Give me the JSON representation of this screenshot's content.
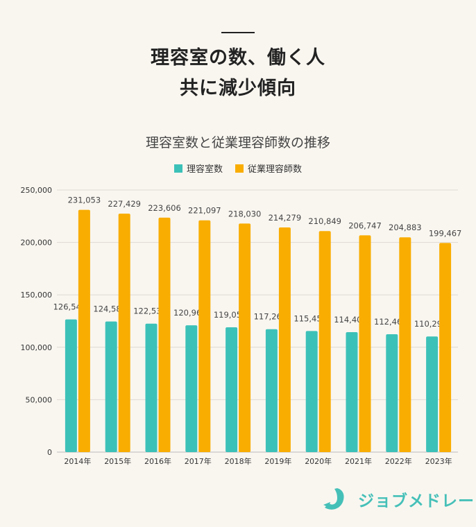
{
  "headline": {
    "line1": "理容室の数、働く人",
    "line2": "共に減少傾向"
  },
  "brand": {
    "name": "ジョブメドレー"
  },
  "colors": {
    "background": "#f9f6f0",
    "series1": "#3cc1b8",
    "series2": "#f9ad00",
    "grid": "#dedad3"
  },
  "chart_data": {
    "type": "bar",
    "title": "理容室数と従業理容師数の推移",
    "categories": [
      "2014年",
      "2015年",
      "2016年",
      "2017年",
      "2018年",
      "2019年",
      "2020年",
      "2021年",
      "2022年",
      "2023年"
    ],
    "series": [
      {
        "name": "理容室数",
        "values": [
          126546,
          124584,
          122539,
          120965,
          119053,
          117266,
          115456,
          114403,
          112468,
          110297
        ]
      },
      {
        "name": "従業理容師数",
        "values": [
          231053,
          227429,
          223606,
          221097,
          218030,
          214279,
          210849,
          206747,
          204883,
          199467
        ]
      }
    ],
    "yticks": [
      0,
      50000,
      100000,
      150000,
      200000,
      250000
    ],
    "ytick_labels": [
      "0",
      "50,000",
      "100,000",
      "150,000",
      "200,000",
      "250,000"
    ],
    "ylim": [
      0,
      250000
    ],
    "grid": true,
    "legend": "top-center"
  }
}
